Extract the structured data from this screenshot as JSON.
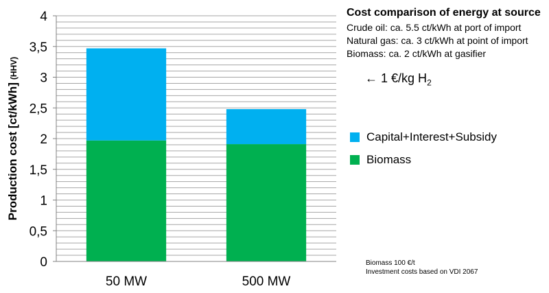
{
  "chart_data": {
    "type": "bar",
    "stacked": true,
    "categories": [
      "50 MW",
      "500 MW"
    ],
    "series": [
      {
        "name": "Biomass",
        "values": [
          1.97,
          1.91
        ],
        "color": "#00b050"
      },
      {
        "name": "Capital+Interest+Subsidy",
        "values": [
          1.5,
          0.57
        ],
        "color": "#00b0f0"
      }
    ],
    "ylabel": "Production cost [ct/kWh]",
    "ylabel_suffix": "(HHV)",
    "ylim": [
      0,
      4
    ],
    "yticks": [
      "0",
      "0,5",
      "1",
      "1,5",
      "2",
      "2,5",
      "3",
      "3,5",
      "4"
    ],
    "grid": true,
    "grid_step": 0.1,
    "legend_position": "right"
  },
  "info": {
    "title": "Cost comparison of energy at source",
    "lines": [
      "Crude oil: ca. 5.5 ct/kWh at port of import",
      "Natural gas: ca. 3 ct/kWh at point of import",
      "Biomass: ca. 2 ct/kWh at gasifier"
    ]
  },
  "h2_note": {
    "arrow": "←",
    "text": "1 €/kg H",
    "sub": "2"
  },
  "legend": {
    "items": [
      {
        "label": "Capital+Interest+Subsidy",
        "color": "#00b0f0"
      },
      {
        "label": "Biomass",
        "color": "#00b050"
      }
    ]
  },
  "footnote": {
    "lines": [
      "Biomass 100 €/t",
      "Investment costs based on VDI 2067"
    ]
  }
}
